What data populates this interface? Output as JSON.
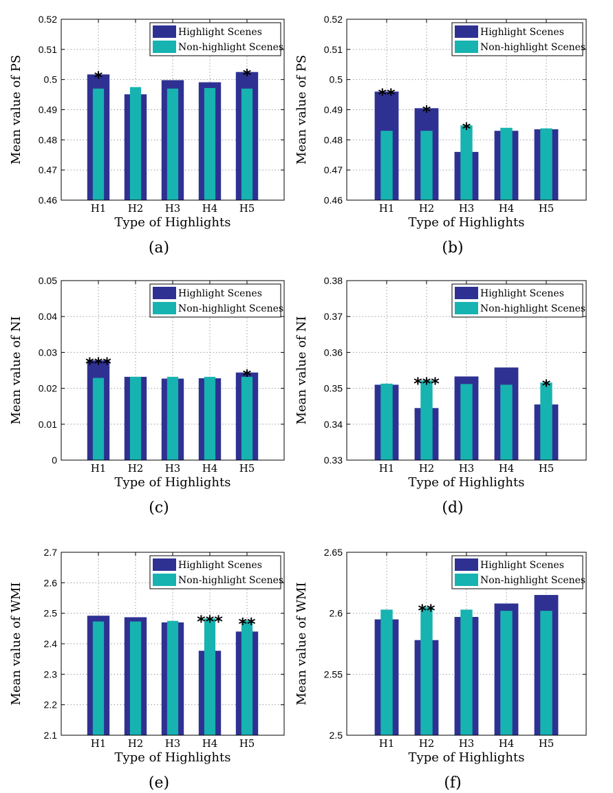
{
  "colors": {
    "highlight": "#2e3192",
    "nonhighlight": "#17b3b0",
    "grid": "#9a9a9a"
  },
  "chart_data": [
    {
      "type": "bar",
      "caption": "(a)",
      "categories": [
        "H1",
        "H2",
        "H3",
        "H4",
        "H5"
      ],
      "xlabel": "Type of Highlights",
      "ylabel": "Mean value of PS",
      "ylim": [
        0.46,
        0.52
      ],
      "yticks": [
        "0.46",
        "0.47",
        "0.48",
        "0.49",
        "0.5",
        "0.51",
        "0.52"
      ],
      "series": [
        {
          "name": "Highlight Scenes",
          "values": [
            0.5017,
            0.4951,
            0.4998,
            0.4991,
            0.5025
          ]
        },
        {
          "name": "Non-highlight Scenes",
          "values": [
            0.497,
            0.4975,
            0.497,
            0.4972,
            0.497
          ]
        }
      ],
      "significance": [
        "*",
        "",
        "",
        "",
        "*"
      ],
      "legend": "top-right"
    },
    {
      "type": "bar",
      "caption": "(b)",
      "categories": [
        "H1",
        "H2",
        "H3",
        "H4",
        "H5"
      ],
      "xlabel": "Type of Highlights",
      "ylabel": "Mean value of PS",
      "ylim": [
        0.46,
        0.52
      ],
      "yticks": [
        "0.46",
        "0.47",
        "0.48",
        "0.49",
        "0.5",
        "0.51",
        "0.52"
      ],
      "series": [
        {
          "name": "Highlight Scenes",
          "values": [
            0.496,
            0.4905,
            0.476,
            0.483,
            0.4835
          ]
        },
        {
          "name": "Non-highlight Scenes",
          "values": [
            0.483,
            0.483,
            0.4848,
            0.484,
            0.4838
          ]
        }
      ],
      "significance": [
        "**",
        "*",
        "*",
        "",
        ""
      ],
      "legend": "top-right"
    },
    {
      "type": "bar",
      "caption": "(c)",
      "categories": [
        "H1",
        "H2",
        "H3",
        "H4",
        "H5"
      ],
      "xlabel": "Type of Highlights",
      "ylabel": "Mean value of NI",
      "ylim": [
        0,
        0.05
      ],
      "yticks": [
        "0",
        "0.01",
        "0.02",
        "0.03",
        "0.04",
        "0.05"
      ],
      "series": [
        {
          "name": "Highlight Scenes",
          "values": [
            0.0278,
            0.0232,
            0.0227,
            0.0228,
            0.0244
          ]
        },
        {
          "name": "Non-highlight Scenes",
          "values": [
            0.0229,
            0.0232,
            0.0232,
            0.0232,
            0.0232
          ]
        }
      ],
      "significance": [
        "***",
        "",
        "",
        "",
        "*"
      ],
      "legend": "top-right"
    },
    {
      "type": "bar",
      "caption": "(d)",
      "categories": [
        "H1",
        "H2",
        "H3",
        "H4",
        "H5"
      ],
      "xlabel": "Type of Highlights",
      "ylabel": "Mean value of NI",
      "ylim": [
        0.33,
        0.38
      ],
      "yticks": [
        "0.33",
        "0.34",
        "0.35",
        "0.36",
        "0.37",
        "0.38"
      ],
      "series": [
        {
          "name": "Highlight Scenes",
          "values": [
            0.351,
            0.3445,
            0.3533,
            0.3558,
            0.3455
          ]
        },
        {
          "name": "Non-highlight Scenes",
          "values": [
            0.3513,
            0.3522,
            0.3512,
            0.351,
            0.3516
          ]
        }
      ],
      "significance": [
        "",
        "***",
        "",
        "",
        "*"
      ],
      "legend": "top-right"
    },
    {
      "type": "bar",
      "caption": "(e)",
      "categories": [
        "H1",
        "H2",
        "H3",
        "H4",
        "H5"
      ],
      "xlabel": "Type of Highlights",
      "ylabel": "Mean value of WMI",
      "ylim": [
        2.1,
        2.7
      ],
      "yticks": [
        "2.1",
        "2.2",
        "2.3",
        "2.4",
        "2.5",
        "2.6",
        "2.7"
      ],
      "series": [
        {
          "name": "Highlight Scenes",
          "values": [
            2.492,
            2.487,
            2.47,
            2.377,
            2.44
          ]
        },
        {
          "name": "Non-highlight Scenes",
          "values": [
            2.473,
            2.473,
            2.475,
            2.483,
            2.476
          ]
        }
      ],
      "significance": [
        "",
        "",
        "",
        "***",
        "**"
      ],
      "legend": "top-right"
    },
    {
      "type": "bar",
      "caption": "(f)",
      "categories": [
        "H1",
        "H2",
        "H3",
        "H4",
        "H5"
      ],
      "xlabel": "Type of Highlights",
      "ylabel": "Mean value of WMI",
      "ylim": [
        2.5,
        2.65
      ],
      "yticks": [
        "2.5",
        "2.55",
        "2.6",
        "2.65"
      ],
      "series": [
        {
          "name": "Highlight Scenes",
          "values": [
            2.595,
            2.578,
            2.597,
            2.608,
            2.615
          ]
        },
        {
          "name": "Non-highlight Scenes",
          "values": [
            2.603,
            2.605,
            2.603,
            2.602,
            2.602
          ]
        }
      ],
      "significance": [
        "",
        "**",
        "",
        "",
        ""
      ],
      "legend": "top-right"
    }
  ]
}
